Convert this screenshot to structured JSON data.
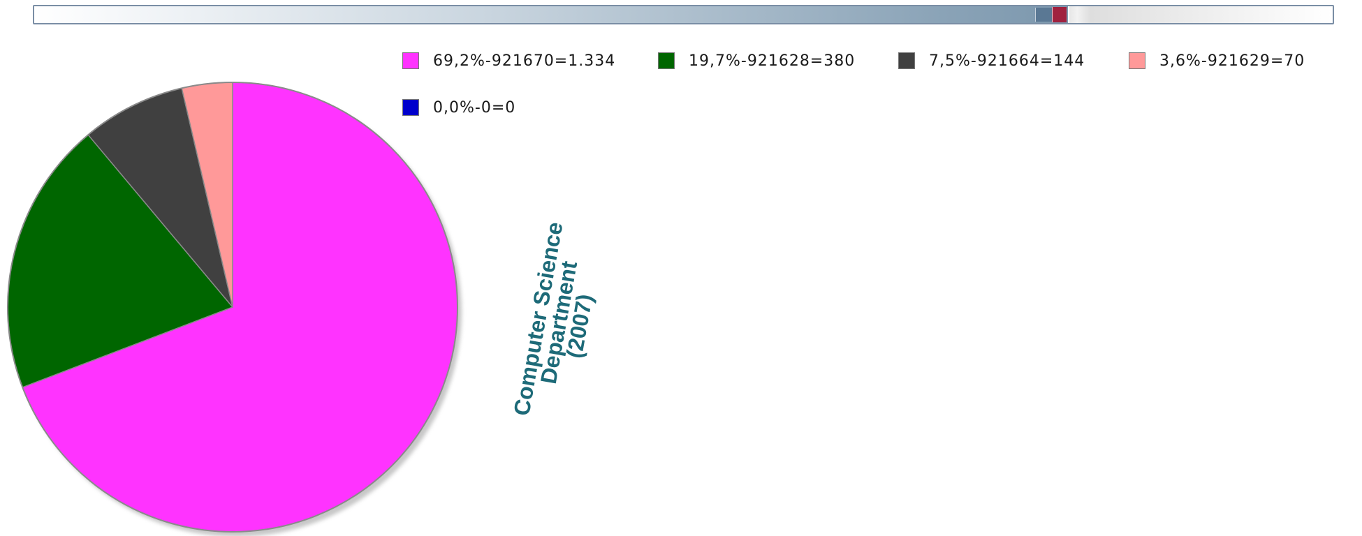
{
  "scrollbar": {
    "thumb_color": "#a0213f",
    "track_color": "#5f7f99"
  },
  "chart_data": {
    "type": "pie",
    "title": "",
    "slices": [
      {
        "label": "69,2%-921670=1.334",
        "value": 1334,
        "percent": 69.2,
        "color": "#ff33ff"
      },
      {
        "label": "19,7%-921628=380",
        "value": 380,
        "percent": 19.7,
        "color": "#006600"
      },
      {
        "label": "7,5%-921664=144",
        "value": 144,
        "percent": 7.5,
        "color": "#404040"
      },
      {
        "label": "3,6%-921629=70",
        "value": 70,
        "percent": 3.6,
        "color": "#ff9999"
      },
      {
        "label": "0,0%-0=0",
        "value": 0,
        "percent": 0.0,
        "color": "#0000cc"
      }
    ],
    "legend_placement": "top",
    "annotation": [
      "Computer Science",
      "Department",
      "(2007)"
    ]
  }
}
